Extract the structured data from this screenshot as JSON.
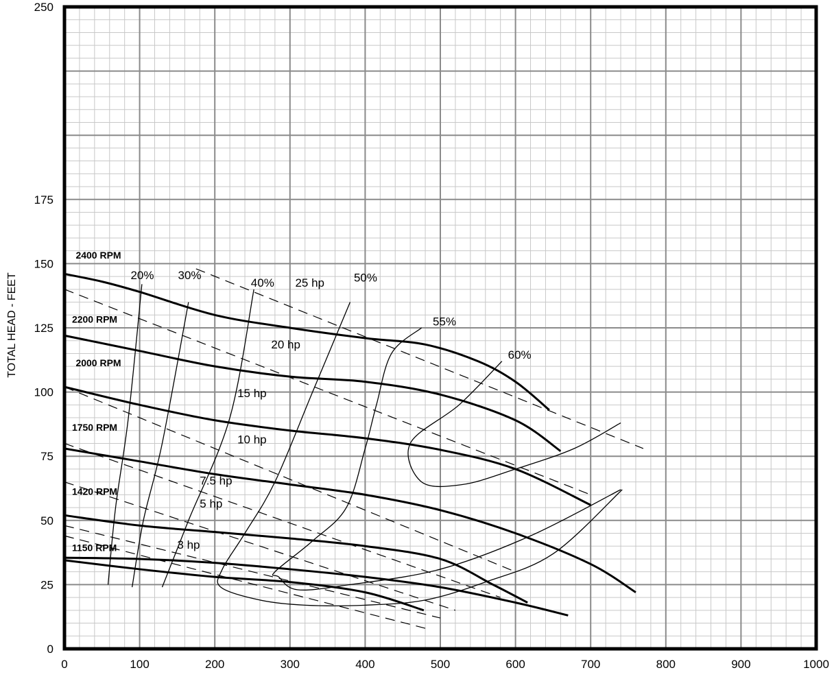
{
  "chart_data": {
    "type": "line",
    "title": "",
    "xlabel": "",
    "ylabel": "TOTAL HEAD - FEET",
    "xlim": [
      0,
      1000
    ],
    "ylim": [
      0,
      250
    ],
    "grid": true,
    "x_ticks": [
      "0",
      "100",
      "200",
      "300",
      "400",
      "500",
      "600",
      "700",
      "800",
      "900",
      "1000"
    ],
    "y_ticks": [
      "0",
      "25",
      "50",
      "75",
      "100",
      "125",
      "150",
      "175",
      "250"
    ],
    "y_tick_values": [
      0,
      25,
      50,
      75,
      100,
      125,
      150,
      175,
      250
    ],
    "series": [
      {
        "name": "2400 RPM",
        "style": "thick",
        "points": [
          [
            0,
            146
          ],
          [
            50,
            143
          ],
          [
            100,
            139
          ],
          [
            200,
            130
          ],
          [
            300,
            125
          ],
          [
            400,
            121
          ],
          [
            480,
            118.5
          ],
          [
            550,
            112
          ],
          [
            600,
            104
          ],
          [
            645,
            93
          ]
        ]
      },
      {
        "name": "2200 RPM",
        "style": "thick",
        "points": [
          [
            0,
            122
          ],
          [
            100,
            116
          ],
          [
            200,
            110
          ],
          [
            300,
            106
          ],
          [
            400,
            104
          ],
          [
            500,
            99
          ],
          [
            600,
            89
          ],
          [
            660,
            77
          ]
        ]
      },
      {
        "name": "2000 RPM",
        "style": "thick",
        "points": [
          [
            0,
            102
          ],
          [
            100,
            95
          ],
          [
            200,
            89
          ],
          [
            300,
            85
          ],
          [
            400,
            82
          ],
          [
            500,
            77.5
          ],
          [
            600,
            70
          ],
          [
            700,
            56
          ]
        ]
      },
      {
        "name": "1750 RPM",
        "style": "thick",
        "points": [
          [
            0,
            78
          ],
          [
            100,
            73
          ],
          [
            200,
            68
          ],
          [
            300,
            64
          ],
          [
            400,
            60
          ],
          [
            500,
            54
          ],
          [
            600,
            45
          ],
          [
            700,
            33
          ],
          [
            760,
            22
          ]
        ]
      },
      {
        "name": "1420 RPM",
        "style": "thick",
        "points": [
          [
            0,
            52
          ],
          [
            100,
            48
          ],
          [
            200,
            45.5
          ],
          [
            300,
            43
          ],
          [
            400,
            40
          ],
          [
            500,
            35
          ],
          [
            570,
            25
          ],
          [
            616,
            18
          ]
        ]
      },
      {
        "name": "1150 RPM",
        "style": "thick",
        "points": [
          [
            0,
            35.5
          ],
          [
            100,
            35
          ],
          [
            200,
            33.5
          ],
          [
            300,
            31
          ],
          [
            400,
            28
          ],
          [
            500,
            24
          ],
          [
            600,
            18
          ],
          [
            670,
            13
          ]
        ]
      },
      {
        "name": "1150 RPM lower",
        "style": "thick",
        "points": [
          [
            0,
            34.5
          ],
          [
            100,
            31
          ],
          [
            200,
            28
          ],
          [
            300,
            26
          ],
          [
            400,
            22
          ],
          [
            478,
            15
          ]
        ]
      },
      {
        "name": "20%",
        "style": "thin",
        "points": [
          [
            103,
            142
          ],
          [
            85,
            90
          ],
          [
            68,
            55
          ],
          [
            58,
            25
          ]
        ]
      },
      {
        "name": "30%",
        "style": "thin",
        "points": [
          [
            165,
            135
          ],
          [
            130,
            80
          ],
          [
            105,
            50
          ],
          [
            90,
            24
          ]
        ]
      },
      {
        "name": "40%",
        "style": "thin",
        "points": [
          [
            252,
            140
          ],
          [
            220,
            90
          ],
          [
            165,
            50
          ],
          [
            130,
            24
          ]
        ]
      },
      {
        "name": "50%",
        "style": "thin",
        "points": [
          [
            380,
            135
          ],
          [
            330,
            100
          ],
          [
            280,
            65
          ],
          [
            240,
            45
          ],
          [
            210,
            31
          ],
          [
            208,
            24
          ],
          [
            260,
            19
          ],
          [
            320,
            17
          ],
          [
            400,
            17
          ],
          [
            480,
            19
          ],
          [
            560,
            26
          ],
          [
            650,
            37
          ],
          [
            742,
            62
          ]
        ]
      },
      {
        "name": "55%",
        "style": "thin",
        "points": [
          [
            475,
            125
          ],
          [
            435,
            115
          ],
          [
            415,
            95
          ],
          [
            400,
            78
          ],
          [
            375,
            55
          ],
          [
            330,
            42
          ],
          [
            280,
            30
          ],
          [
            285,
            28
          ],
          [
            310,
            23
          ],
          [
            380,
            25
          ],
          [
            500,
            31
          ],
          [
            620,
            44
          ],
          [
            740,
            62
          ]
        ]
      },
      {
        "name": "60%",
        "style": "thin",
        "points": [
          [
            582,
            112
          ],
          [
            525,
            95
          ],
          [
            460,
            80
          ],
          [
            475,
            65
          ],
          [
            530,
            64
          ],
          [
            600,
            70
          ],
          [
            678,
            78
          ],
          [
            740,
            88
          ]
        ]
      },
      {
        "name": "25 hp",
        "style": "dashed",
        "points": [
          [
            175,
            148
          ],
          [
            770,
            78
          ]
        ]
      },
      {
        "name": "20 hp",
        "style": "dashed",
        "points": [
          [
            0,
            140
          ],
          [
            700,
            60
          ]
        ]
      },
      {
        "name": "15 hp",
        "style": "dashed",
        "points": [
          [
            0,
            102
          ],
          [
            600,
            30
          ]
        ]
      },
      {
        "name": "10 hp",
        "style": "dashed",
        "points": [
          [
            0,
            80
          ],
          [
            580,
            20
          ]
        ]
      },
      {
        "name": "7.5 hp",
        "style": "dashed",
        "points": [
          [
            0,
            65
          ],
          [
            520,
            15
          ]
        ]
      },
      {
        "name": "5 hp",
        "style": "dashed",
        "points": [
          [
            0,
            48
          ],
          [
            500,
            12
          ]
        ]
      },
      {
        "name": "3 hp",
        "style": "dashed",
        "points": [
          [
            0,
            44
          ],
          [
            480,
            8
          ]
        ]
      }
    ],
    "rpm_labels": [
      {
        "text": "2400 RPM",
        "x": 15,
        "y": 152
      },
      {
        "text": "2200 RPM",
        "x": 10,
        "y": 127
      },
      {
        "text": "2000 RPM",
        "x": 15,
        "y": 110
      },
      {
        "text": "1750 RPM",
        "x": 10,
        "y": 85
      },
      {
        "text": "1420 RPM",
        "x": 10,
        "y": 60
      },
      {
        "text": "1150 RPM",
        "x": 10,
        "y": 38
      }
    ],
    "efficiency_labels": [
      {
        "text": "20%",
        "x": 88,
        "y": 144
      },
      {
        "text": "30%",
        "x": 151,
        "y": 144
      },
      {
        "text": "40%",
        "x": 248,
        "y": 141
      },
      {
        "text": "50%",
        "x": 385,
        "y": 143
      },
      {
        "text": "55%",
        "x": 490,
        "y": 126
      },
      {
        "text": "60%",
        "x": 590,
        "y": 113
      }
    ],
    "hp_labels": [
      {
        "text": "25 hp",
        "x": 307,
        "y": 141
      },
      {
        "text": "20 hp",
        "x": 275,
        "y": 117
      },
      {
        "text": "15 hp",
        "x": 230,
        "y": 98
      },
      {
        "text": "10 hp",
        "x": 230,
        "y": 80
      },
      {
        "text": "7.5 hp",
        "x": 180,
        "y": 64
      },
      {
        "text": "5 hp",
        "x": 180,
        "y": 55
      },
      {
        "text": "3 hp",
        "x": 150,
        "y": 39
      }
    ]
  }
}
